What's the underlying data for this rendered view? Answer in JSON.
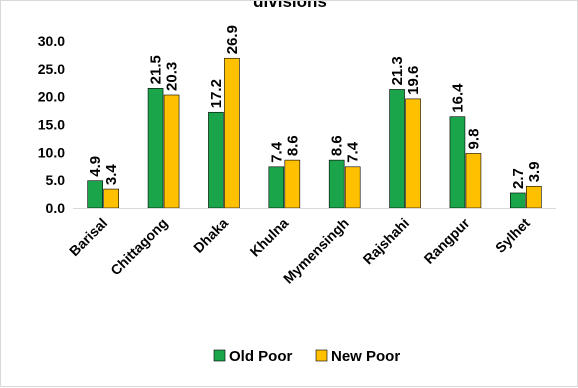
{
  "chart_data": {
    "type": "bar",
    "title": "divisions",
    "categories": [
      "Barisal",
      "Chittagong",
      "Dhaka",
      "Khulna",
      "Mymensingh",
      "Rajshahi",
      "Rangpur",
      "Sylhet"
    ],
    "series": [
      {
        "name": "Old Poor",
        "color": "#1aa54b",
        "values": [
          4.9,
          21.5,
          17.2,
          7.4,
          8.6,
          21.3,
          16.4,
          2.7
        ]
      },
      {
        "name": "New Poor",
        "color": "#ffc000",
        "values": [
          3.4,
          20.3,
          26.9,
          8.6,
          7.4,
          19.6,
          9.8,
          3.9
        ]
      }
    ],
    "y_ticks": [
      "0.0",
      "5.0",
      "10.0",
      "15.0",
      "20.0",
      "25.0",
      "30.0"
    ],
    "ylim": [
      0,
      30
    ],
    "grid": false,
    "legend_position": "bottom",
    "data_labels": true,
    "xlabel": "",
    "ylabel": ""
  }
}
